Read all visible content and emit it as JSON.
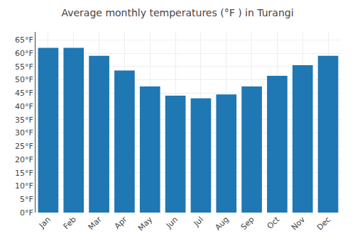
{
  "chart_data": {
    "type": "bar",
    "title": "Average monthly temperatures (°F ) in Turangi",
    "categories": [
      "Jan",
      "Feb",
      "Mar",
      "Apr",
      "May",
      "Jun",
      "Jul",
      "Aug",
      "Sep",
      "Oct",
      "Nov",
      "Dec"
    ],
    "values": [
      62,
      62,
      59,
      53.5,
      47.5,
      44,
      43,
      44.5,
      47.5,
      51.5,
      55.5,
      59
    ],
    "ylim": [
      0,
      68
    ],
    "yticks": [
      {
        "value": 0,
        "label": "0°F"
      },
      {
        "value": 5,
        "label": "5°F"
      },
      {
        "value": 10,
        "label": "10°F"
      },
      {
        "value": 15,
        "label": "15°F"
      },
      {
        "value": 20,
        "label": "20°F"
      },
      {
        "value": 25,
        "label": "25°F"
      },
      {
        "value": 30,
        "label": "30°F"
      },
      {
        "value": 35,
        "label": "35°F"
      },
      {
        "value": 40,
        "label": "40°F"
      },
      {
        "value": 45,
        "label": "45°F"
      },
      {
        "value": 50,
        "label": "50°F"
      },
      {
        "value": 55,
        "label": "55°F"
      },
      {
        "value": 60,
        "label": "60°F"
      },
      {
        "value": 65,
        "label": "65°F"
      }
    ],
    "grid": true
  }
}
